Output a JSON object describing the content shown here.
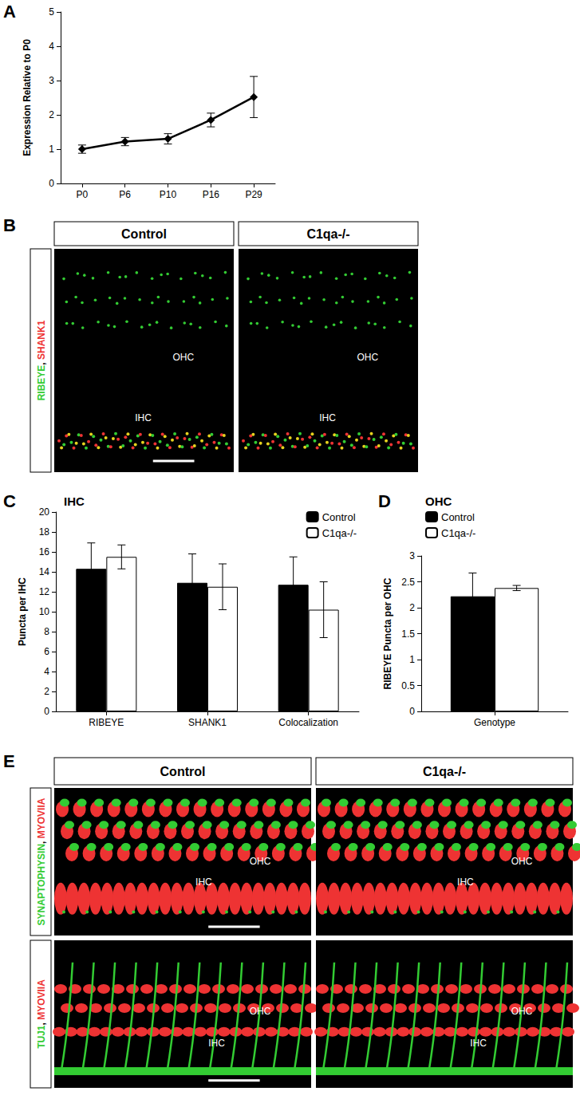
{
  "chart_data": [
    {
      "panel": "A",
      "type": "line",
      "marker": "diamond",
      "color": "#000000",
      "categories": [
        "P0",
        "P6",
        "P10",
        "P16",
        "P29"
      ],
      "values": [
        1.0,
        1.22,
        1.3,
        1.85,
        2.52
      ],
      "errors": [
        0.12,
        0.12,
        0.15,
        0.2,
        0.6
      ],
      "ylabel": "Expression Relative to P0",
      "ylim": [
        0,
        5
      ],
      "yticks": [
        0,
        1,
        2,
        3,
        4,
        5
      ],
      "grid": false
    },
    {
      "panel": "C",
      "type": "bar",
      "title": "IHC",
      "categories": [
        "RIBEYE",
        "SHANK1",
        "Colocalization"
      ],
      "series": [
        {
          "name": "Control",
          "color": "#000000",
          "values": [
            14.3,
            12.9,
            12.7
          ],
          "errors": [
            2.6,
            2.9,
            2.8
          ]
        },
        {
          "name": "C1qa-/-",
          "color": "#ffffff",
          "values": [
            15.5,
            12.5,
            10.2
          ],
          "errors": [
            1.2,
            2.3,
            2.8
          ]
        }
      ],
      "ylabel": "Puncta per IHC",
      "ylim": [
        0,
        20
      ],
      "yticks": [
        0,
        2,
        4,
        6,
        8,
        10,
        12,
        14,
        16,
        18,
        20
      ],
      "legend": "upper right",
      "grid": false
    },
    {
      "panel": "D",
      "type": "bar",
      "title": "OHC",
      "categories": [
        "Genotype"
      ],
      "series": [
        {
          "name": "Control",
          "color": "#000000",
          "values": [
            2.22
          ],
          "errors": [
            0.45
          ]
        },
        {
          "name": "C1qa-/-",
          "color": "#ffffff",
          "values": [
            2.38
          ],
          "errors": [
            0.05
          ]
        }
      ],
      "ylabel": "RIBEYE Puncta per OHC",
      "ylim": [
        0,
        3
      ],
      "yticks": [
        0,
        0.5,
        1,
        1.5,
        2,
        2.5,
        3
      ],
      "legend": "upper left",
      "grid": false
    }
  ],
  "images": [
    {
      "panel": "B",
      "columns": [
        "Control",
        "C1qa-/-"
      ],
      "rows": [
        {
          "label": "RIBEYE, SHANK1",
          "colors": [
            "#33cc33",
            "#ee3333"
          ],
          "regions": [
            "OHC",
            "IHC"
          ]
        }
      ]
    },
    {
      "panel": "E",
      "columns": [
        "Control",
        "C1qa-/-"
      ],
      "rows": [
        {
          "label": "SYNAPTOPHYSIN, MYOVIIA",
          "colors": [
            "#33cc33",
            "#ee3333"
          ],
          "regions": [
            "OHC",
            "IHC"
          ]
        },
        {
          "label": "TUJ1, MYOVIIA",
          "colors": [
            "#33cc33",
            "#ee3333"
          ],
          "regions": [
            "OHC",
            "IHC"
          ]
        }
      ]
    }
  ]
}
